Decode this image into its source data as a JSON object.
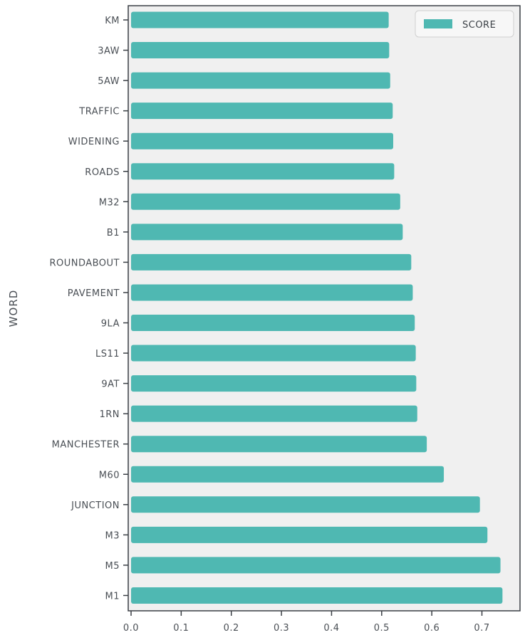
{
  "chart_data": {
    "type": "bar",
    "orientation": "horizontal",
    "ylabel": "WORD",
    "xlabel": "",
    "categories": [
      "KM",
      "3AW",
      "5AW",
      "TRAFFIC",
      "WIDENING",
      "ROADS",
      "M32",
      "B1",
      "ROUNDABOUT",
      "PAVEMENT",
      "9LA",
      "LS11",
      "9AT",
      "1RN",
      "MANCHESTER",
      "M60",
      "JUNCTION",
      "M3",
      "M5",
      "M1"
    ],
    "series": [
      {
        "name": "SCORE",
        "values": [
          0.514,
          0.515,
          0.517,
          0.522,
          0.523,
          0.525,
          0.537,
          0.542,
          0.559,
          0.562,
          0.566,
          0.568,
          0.569,
          0.571,
          0.59,
          0.624,
          0.696,
          0.711,
          0.737,
          0.741
        ]
      }
    ],
    "xlim": [
      0.0,
      0.78
    ],
    "xticks": [
      "0.0",
      "0.1",
      "0.2",
      "0.3",
      "0.4",
      "0.5",
      "0.6",
      "0.7"
    ],
    "legend_position": "top-right",
    "grid": false,
    "colors": {
      "bar": "#4fb8b2",
      "plot_background": "#f0f0f0",
      "axis": "#3a3f45",
      "text": "#4a4f55"
    }
  }
}
